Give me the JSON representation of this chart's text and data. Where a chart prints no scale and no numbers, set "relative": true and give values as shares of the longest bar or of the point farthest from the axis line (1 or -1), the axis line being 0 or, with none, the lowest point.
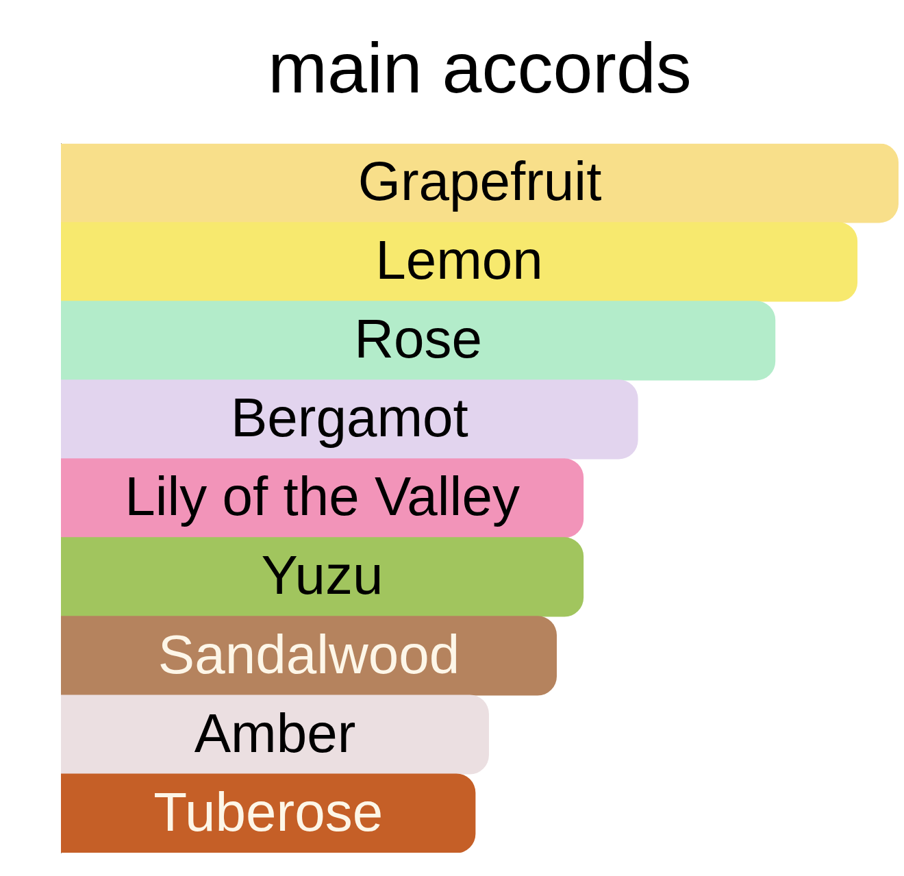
{
  "chart_data": {
    "type": "bar",
    "orientation": "horizontal",
    "relative": true,
    "title": "main accords",
    "categories": [
      "Grapefruit",
      "Lemon",
      "Rose",
      "Bergamot",
      "Lily of the Valley",
      "Yuzu",
      "Sandalwood",
      "Amber",
      "Tuberose"
    ],
    "values": [
      1,
      0.951,
      0.853,
      0.689,
      0.624,
      0.624,
      0.592,
      0.511,
      0.495
    ],
    "colors": [
      "#f8df8a",
      "#f7e96e",
      "#b3ecca",
      "#e2d4ee",
      "#f294b9",
      "#a1c55e",
      "#b5835e",
      "#ebdfe1",
      "#c55f27"
    ]
  }
}
